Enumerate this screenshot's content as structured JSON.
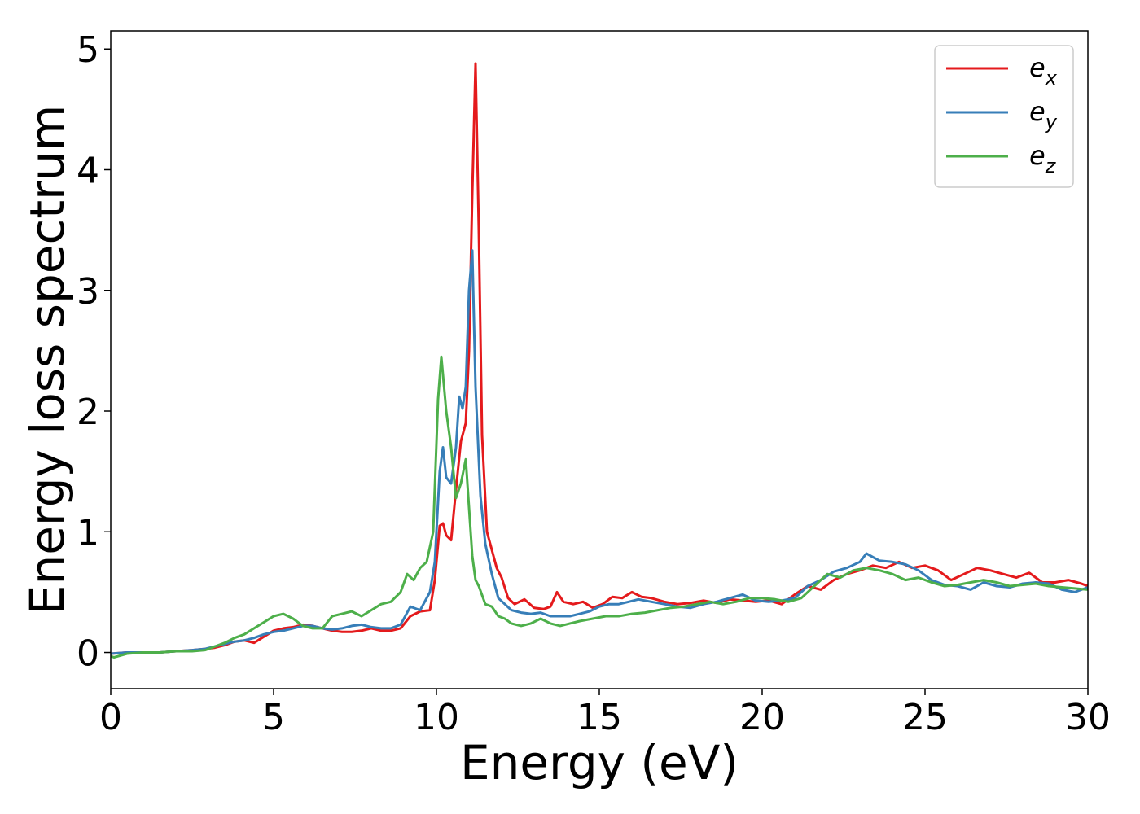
{
  "chart_data": {
    "type": "line",
    "title": "",
    "xlabel": "Energy (eV)",
    "ylabel": "Energy loss spectrum",
    "xlim": [
      0,
      30
    ],
    "ylim": [
      -0.3,
      5.15
    ],
    "xticks": [
      0,
      5,
      10,
      15,
      20,
      25,
      30
    ],
    "yticks": [
      0,
      1,
      2,
      3,
      4,
      5
    ],
    "grid": false,
    "legend_position": "top-right",
    "series": [
      {
        "name": "e_x",
        "legend_base": "e",
        "legend_sub": "x",
        "color": "#e41a1c",
        "x": [
          0,
          0.5,
          1,
          1.5,
          2,
          2.5,
          2.9,
          3.2,
          3.5,
          3.8,
          4.1,
          4.4,
          4.7,
          5.0,
          5.3,
          5.6,
          5.9,
          6.2,
          6.5,
          6.8,
          7.1,
          7.4,
          7.7,
          8.0,
          8.3,
          8.6,
          8.9,
          9.2,
          9.5,
          9.8,
          9.95,
          10.1,
          10.2,
          10.3,
          10.45,
          10.6,
          10.75,
          10.9,
          11.0,
          11.1,
          11.2,
          11.3,
          11.4,
          11.55,
          11.7,
          11.85,
          12.0,
          12.2,
          12.4,
          12.7,
          13.0,
          13.3,
          13.5,
          13.7,
          13.9,
          14.2,
          14.5,
          14.8,
          15.1,
          15.4,
          15.7,
          16.0,
          16.3,
          16.6,
          17.0,
          17.4,
          17.8,
          18.2,
          18.6,
          19.0,
          19.4,
          19.8,
          20.2,
          20.6,
          21.0,
          21.4,
          21.8,
          22.2,
          22.6,
          23.0,
          23.4,
          23.8,
          24.2,
          24.6,
          25.0,
          25.4,
          25.8,
          26.2,
          26.6,
          27.0,
          27.4,
          27.8,
          28.2,
          28.6,
          29.0,
          29.4,
          29.8,
          30.0
        ],
        "y": [
          -0.01,
          0.0,
          0.0,
          0.0,
          0.01,
          0.02,
          0.03,
          0.04,
          0.06,
          0.09,
          0.1,
          0.08,
          0.13,
          0.18,
          0.2,
          0.21,
          0.23,
          0.22,
          0.2,
          0.18,
          0.17,
          0.17,
          0.18,
          0.2,
          0.18,
          0.18,
          0.2,
          0.3,
          0.34,
          0.35,
          0.6,
          1.05,
          1.07,
          0.97,
          0.93,
          1.35,
          1.75,
          1.9,
          2.5,
          3.8,
          4.88,
          3.5,
          1.8,
          1.0,
          0.85,
          0.7,
          0.62,
          0.45,
          0.4,
          0.44,
          0.37,
          0.36,
          0.38,
          0.5,
          0.42,
          0.4,
          0.42,
          0.37,
          0.4,
          0.46,
          0.45,
          0.5,
          0.46,
          0.45,
          0.42,
          0.4,
          0.41,
          0.43,
          0.41,
          0.44,
          0.43,
          0.42,
          0.43,
          0.4,
          0.48,
          0.55,
          0.52,
          0.6,
          0.65,
          0.68,
          0.72,
          0.7,
          0.75,
          0.7,
          0.72,
          0.68,
          0.6,
          0.65,
          0.7,
          0.68,
          0.65,
          0.62,
          0.66,
          0.58,
          0.58,
          0.6,
          0.57,
          0.55
        ]
      },
      {
        "name": "e_y",
        "legend_base": "e",
        "legend_sub": "y",
        "color": "#377eb8",
        "x": [
          0,
          0.5,
          1,
          1.5,
          2,
          2.5,
          2.9,
          3.2,
          3.5,
          3.8,
          4.1,
          4.4,
          4.7,
          5.0,
          5.3,
          5.6,
          5.9,
          6.2,
          6.5,
          6.8,
          7.1,
          7.4,
          7.7,
          8.0,
          8.3,
          8.6,
          8.9,
          9.2,
          9.5,
          9.8,
          9.95,
          10.1,
          10.2,
          10.3,
          10.45,
          10.6,
          10.7,
          10.8,
          10.9,
          11.0,
          11.1,
          11.2,
          11.35,
          11.5,
          11.7,
          11.9,
          12.1,
          12.3,
          12.6,
          12.9,
          13.2,
          13.5,
          13.8,
          14.1,
          14.4,
          14.7,
          15.0,
          15.3,
          15.6,
          15.9,
          16.2,
          16.6,
          17.0,
          17.4,
          17.8,
          18.2,
          18.6,
          19.0,
          19.4,
          19.8,
          20.2,
          20.6,
          21.0,
          21.4,
          21.8,
          22.2,
          22.6,
          23.0,
          23.2,
          23.6,
          24.0,
          24.4,
          24.8,
          25.2,
          25.6,
          26.0,
          26.4,
          26.8,
          27.2,
          27.6,
          28.0,
          28.4,
          28.8,
          29.2,
          29.6,
          30.0
        ],
        "y": [
          -0.01,
          0.0,
          0.0,
          0.0,
          0.01,
          0.02,
          0.03,
          0.05,
          0.07,
          0.09,
          0.1,
          0.12,
          0.15,
          0.17,
          0.18,
          0.2,
          0.22,
          0.22,
          0.2,
          0.19,
          0.2,
          0.22,
          0.23,
          0.21,
          0.2,
          0.2,
          0.23,
          0.38,
          0.35,
          0.5,
          0.75,
          1.5,
          1.7,
          1.45,
          1.4,
          1.7,
          2.12,
          2.02,
          2.2,
          3.0,
          3.33,
          2.2,
          1.3,
          0.9,
          0.65,
          0.45,
          0.4,
          0.35,
          0.33,
          0.32,
          0.33,
          0.3,
          0.3,
          0.3,
          0.32,
          0.34,
          0.38,
          0.4,
          0.4,
          0.42,
          0.44,
          0.42,
          0.4,
          0.38,
          0.37,
          0.4,
          0.42,
          0.45,
          0.48,
          0.43,
          0.42,
          0.43,
          0.45,
          0.55,
          0.6,
          0.67,
          0.7,
          0.75,
          0.82,
          0.76,
          0.75,
          0.73,
          0.68,
          0.6,
          0.56,
          0.55,
          0.52,
          0.58,
          0.55,
          0.54,
          0.57,
          0.58,
          0.57,
          0.52,
          0.5,
          0.54
        ]
      },
      {
        "name": "e_z",
        "legend_base": "e",
        "legend_sub": "z",
        "color": "#4daf4a",
        "x": [
          0,
          0.1,
          0.5,
          1,
          1.5,
          2,
          2.5,
          2.9,
          3.2,
          3.5,
          3.8,
          4.1,
          4.4,
          4.7,
          5.0,
          5.3,
          5.6,
          5.9,
          6.2,
          6.5,
          6.8,
          7.1,
          7.4,
          7.7,
          8.0,
          8.3,
          8.6,
          8.9,
          9.1,
          9.3,
          9.5,
          9.7,
          9.9,
          10.05,
          10.15,
          10.3,
          10.45,
          10.6,
          10.75,
          10.9,
          11.0,
          11.1,
          11.2,
          11.3,
          11.5,
          11.7,
          11.9,
          12.1,
          12.3,
          12.6,
          12.9,
          13.2,
          13.5,
          13.8,
          14.1,
          14.4,
          14.8,
          15.2,
          15.6,
          16.0,
          16.4,
          16.8,
          17.2,
          17.6,
          18.0,
          18.4,
          18.8,
          19.2,
          19.6,
          20.0,
          20.4,
          20.8,
          21.2,
          21.6,
          22.0,
          22.4,
          22.8,
          23.2,
          23.6,
          24.0,
          24.4,
          24.8,
          25.2,
          25.6,
          26.0,
          26.4,
          26.8,
          27.2,
          27.6,
          28.0,
          28.4,
          28.8,
          29.2,
          29.6,
          30.0
        ],
        "y": [
          -0.03,
          -0.04,
          -0.01,
          0.0,
          0.0,
          0.01,
          0.01,
          0.02,
          0.05,
          0.08,
          0.12,
          0.15,
          0.2,
          0.25,
          0.3,
          0.32,
          0.28,
          0.22,
          0.2,
          0.2,
          0.3,
          0.32,
          0.34,
          0.3,
          0.35,
          0.4,
          0.42,
          0.5,
          0.65,
          0.6,
          0.7,
          0.75,
          1.0,
          2.1,
          2.45,
          2.0,
          1.7,
          1.28,
          1.4,
          1.6,
          1.2,
          0.8,
          0.6,
          0.55,
          0.4,
          0.38,
          0.3,
          0.28,
          0.24,
          0.22,
          0.24,
          0.28,
          0.24,
          0.22,
          0.24,
          0.26,
          0.28,
          0.3,
          0.3,
          0.32,
          0.33,
          0.35,
          0.37,
          0.38,
          0.4,
          0.42,
          0.4,
          0.42,
          0.45,
          0.45,
          0.44,
          0.42,
          0.45,
          0.55,
          0.65,
          0.62,
          0.68,
          0.7,
          0.68,
          0.65,
          0.6,
          0.62,
          0.58,
          0.55,
          0.56,
          0.58,
          0.6,
          0.58,
          0.55,
          0.56,
          0.57,
          0.55,
          0.54,
          0.53,
          0.52
        ]
      }
    ]
  }
}
